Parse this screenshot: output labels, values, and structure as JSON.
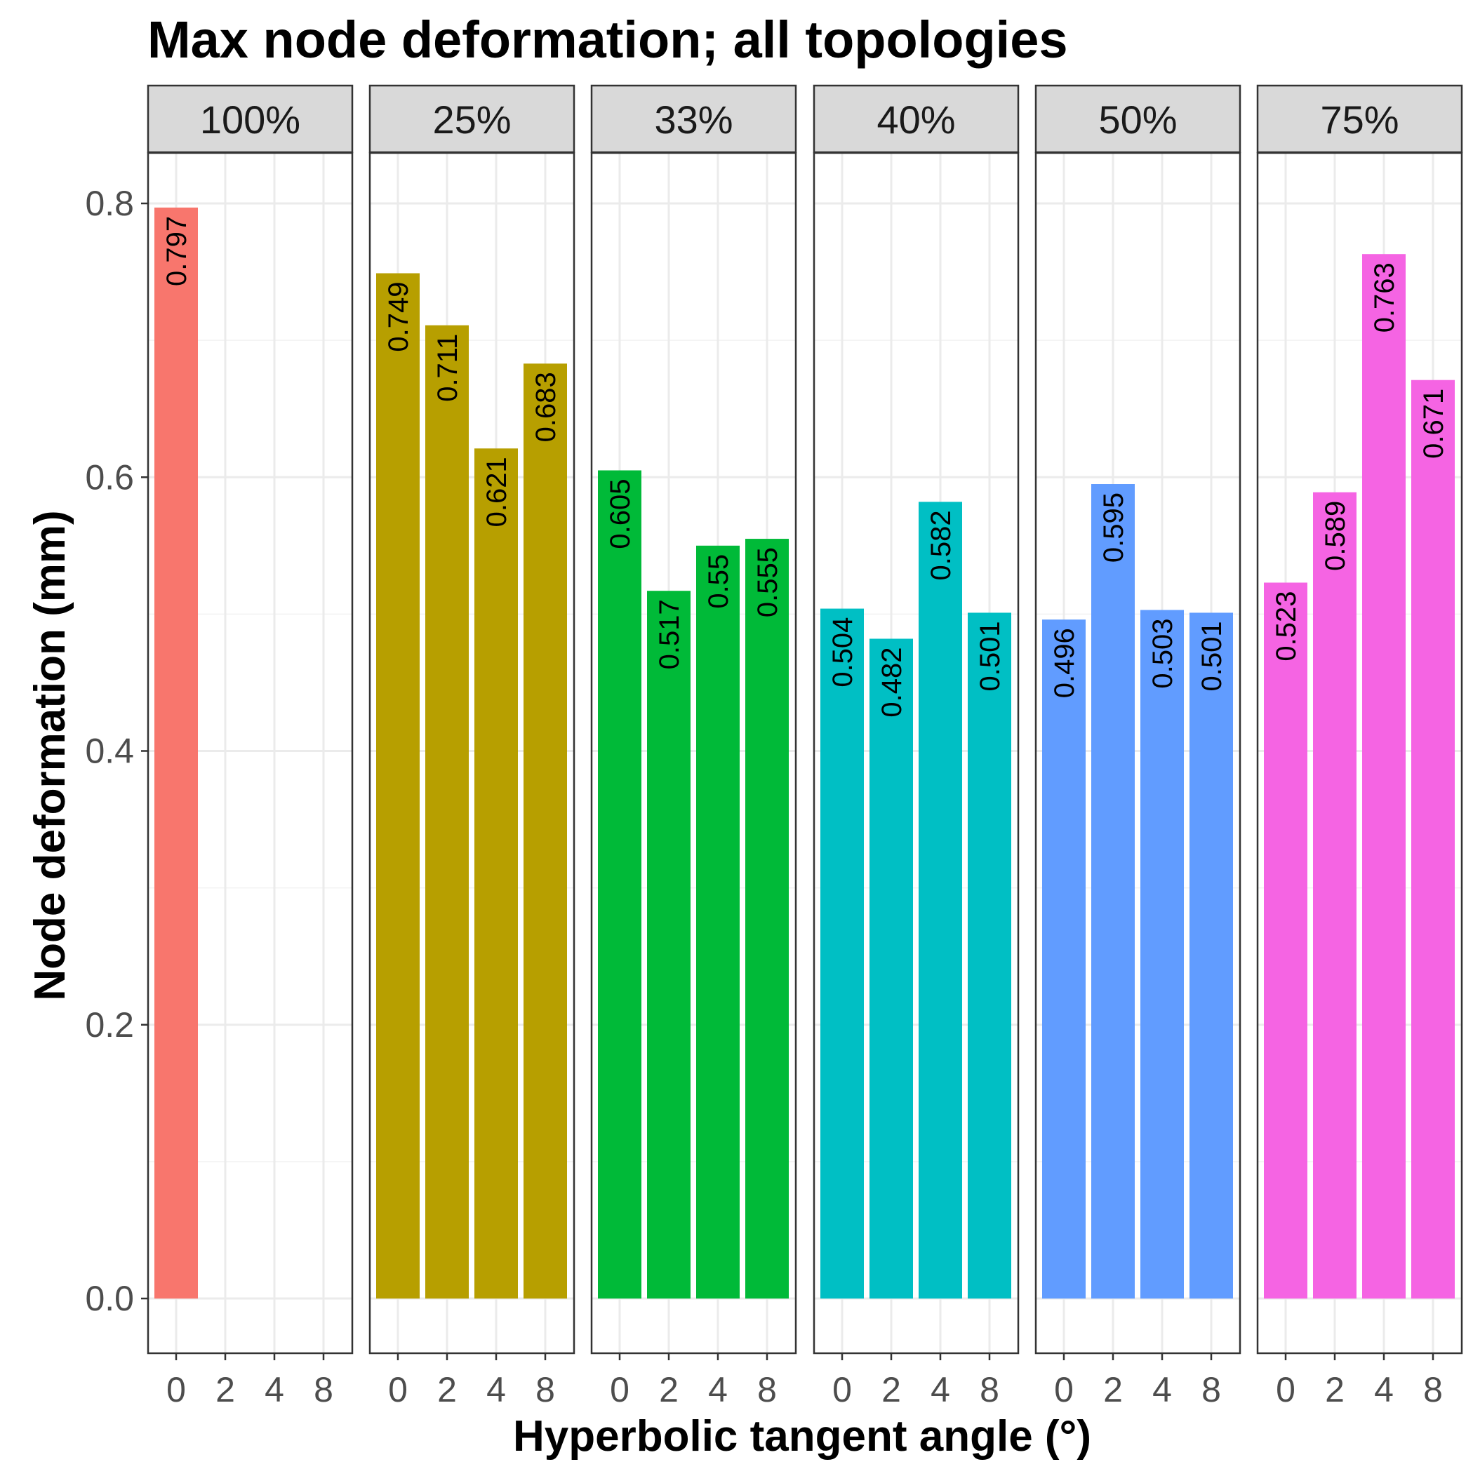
{
  "chart_data": {
    "type": "bar",
    "title": "Max node deformation; all topologies",
    "xlabel": "Hyperbolic tangent angle (°)",
    "ylabel": "Node deformation (mm)",
    "ylim": [
      0.0,
      0.8
    ],
    "y_ticks": [
      "0.0",
      "0.2",
      "0.4",
      "0.6",
      "0.8"
    ],
    "y_tick_values": [
      0.0,
      0.2,
      0.4,
      0.6,
      0.8
    ],
    "x_categories": [
      "0",
      "2",
      "4",
      "8"
    ],
    "grid": true,
    "facets": [
      {
        "label": "100%",
        "color": "#F8766D",
        "x": [
          "0"
        ],
        "values": [
          0.797
        ]
      },
      {
        "label": "25%",
        "color": "#B79F00",
        "x": [
          "0",
          "2",
          "4",
          "8"
        ],
        "values": [
          0.749,
          0.711,
          0.621,
          0.683
        ]
      },
      {
        "label": "33%",
        "color": "#00BA38",
        "x": [
          "0",
          "2",
          "4",
          "8"
        ],
        "values": [
          0.605,
          0.517,
          0.55,
          0.555
        ]
      },
      {
        "label": "40%",
        "color": "#00BFC4",
        "x": [
          "0",
          "2",
          "4",
          "8"
        ],
        "values": [
          0.504,
          0.482,
          0.582,
          0.501
        ]
      },
      {
        "label": "50%",
        "color": "#619CFF",
        "x": [
          "0",
          "2",
          "4",
          "8"
        ],
        "values": [
          0.496,
          0.595,
          0.503,
          0.501
        ]
      },
      {
        "label": "75%",
        "color": "#F564E3",
        "x": [
          "0",
          "2",
          "4",
          "8"
        ],
        "values": [
          0.523,
          0.589,
          0.763,
          0.671
        ]
      }
    ]
  }
}
